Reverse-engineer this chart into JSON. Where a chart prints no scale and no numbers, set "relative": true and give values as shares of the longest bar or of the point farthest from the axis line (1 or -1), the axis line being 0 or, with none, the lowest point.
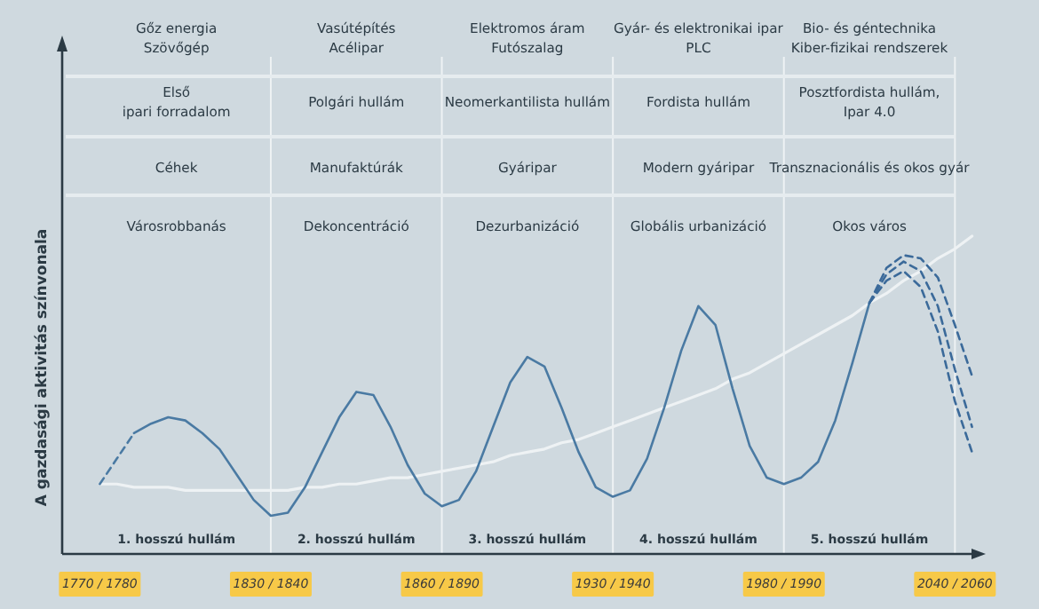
{
  "chart_data": {
    "type": "line",
    "relative": true,
    "ylabel": "A gazdasági aktivitás színvonala",
    "categories": [
      "1770 / 1780",
      null,
      null,
      null,
      null,
      null,
      null,
      null,
      null,
      null,
      "1830 / 1840",
      null,
      null,
      null,
      null,
      null,
      null,
      null,
      null,
      null,
      "1860 / 1890",
      null,
      null,
      null,
      null,
      null,
      null,
      null,
      null,
      null,
      "1930 / 1940",
      null,
      null,
      null,
      null,
      null,
      null,
      null,
      null,
      null,
      "1980 / 1990",
      null,
      null,
      null,
      null,
      null,
      null,
      null,
      null,
      null,
      "2040 / 2060",
      null
    ],
    "grid": "x",
    "marker": "none",
    "series": [
      {
        "color": "#eef2f4",
        "values": [
          0.22,
          0.22,
          0.21,
          0.21,
          0.21,
          0.2,
          0.2,
          0.2,
          0.2,
          0.2,
          0.2,
          0.2,
          0.21,
          0.21,
          0.22,
          0.22,
          0.23,
          0.24,
          0.24,
          0.25,
          0.26,
          0.27,
          0.28,
          0.29,
          0.31,
          0.32,
          0.33,
          0.35,
          0.36,
          0.38,
          0.4,
          0.42,
          0.44,
          0.46,
          0.48,
          0.5,
          0.52,
          0.55,
          0.57,
          0.6,
          0.63,
          0.66,
          0.69,
          0.72,
          0.75,
          0.79,
          0.82,
          0.86,
          0.89,
          0.93,
          0.96,
          1
        ]
      },
      {
        "color": "#4a7aa3",
        "line_style": "dashed",
        "values": [
          0.22,
          0.3,
          0.38,
          null,
          null,
          null,
          null,
          null,
          null,
          null,
          null,
          null,
          null,
          null,
          null,
          null,
          null,
          null,
          null,
          null,
          null,
          null,
          null,
          null,
          null,
          null,
          null,
          null,
          null,
          null,
          null,
          null,
          null,
          null,
          null,
          null,
          null,
          null,
          null,
          null,
          null,
          null,
          null,
          null,
          null,
          null,
          null,
          null,
          null,
          null,
          null,
          null
        ]
      },
      {
        "color": "#4a7aa3",
        "line_style": "solid",
        "values": [
          null,
          null,
          0.38,
          0.41,
          0.43,
          0.42,
          0.38,
          0.33,
          0.25,
          0.17,
          0.12,
          0.13,
          0.21,
          0.32,
          0.43,
          0.51,
          0.5,
          0.4,
          0.28,
          0.19,
          0.15,
          0.17,
          0.26,
          0.4,
          0.54,
          0.62,
          0.59,
          0.46,
          0.32,
          0.21,
          0.18,
          0.2,
          0.3,
          0.46,
          0.64,
          0.78,
          0.72,
          0.52,
          0.34,
          0.24,
          0.22,
          0.24,
          0.29,
          0.42,
          0.6,
          0.79,
          null,
          null,
          null,
          null,
          null,
          null
        ]
      },
      {
        "color": "#3b6a9a",
        "line_style": "dashed",
        "values": [
          null,
          null,
          null,
          null,
          null,
          null,
          null,
          null,
          null,
          null,
          null,
          null,
          null,
          null,
          null,
          null,
          null,
          null,
          null,
          null,
          null,
          null,
          null,
          null,
          null,
          null,
          null,
          null,
          null,
          null,
          null,
          null,
          null,
          null,
          null,
          null,
          null,
          null,
          null,
          null,
          null,
          null,
          null,
          null,
          null,
          0.79,
          0.9,
          0.94,
          0.93,
          0.87,
          0.72,
          0.56
        ]
      },
      {
        "color": "#3b6a9a",
        "line_style": "dashed",
        "values": [
          null,
          null,
          null,
          null,
          null,
          null,
          null,
          null,
          null,
          null,
          null,
          null,
          null,
          null,
          null,
          null,
          null,
          null,
          null,
          null,
          null,
          null,
          null,
          null,
          null,
          null,
          null,
          null,
          null,
          null,
          null,
          null,
          null,
          null,
          null,
          null,
          null,
          null,
          null,
          null,
          null,
          null,
          null,
          null,
          null,
          0.79,
          0.88,
          0.92,
          0.89,
          0.78,
          0.58,
          0.4
        ]
      },
      {
        "color": "#3b6a9a",
        "line_style": "dashed",
        "values": [
          null,
          null,
          null,
          null,
          null,
          null,
          null,
          null,
          null,
          null,
          null,
          null,
          null,
          null,
          null,
          null,
          null,
          null,
          null,
          null,
          null,
          null,
          null,
          null,
          null,
          null,
          null,
          null,
          null,
          null,
          null,
          null,
          null,
          null,
          null,
          null,
          null,
          null,
          null,
          null,
          null,
          null,
          null,
          null,
          null,
          0.79,
          0.86,
          0.89,
          0.84,
          0.7,
          0.48,
          0.32
        ]
      }
    ],
    "annotations": [
      "Gőz energia\nSzövőgép",
      "Vasútépítés\nAcélipar",
      "Elektromos áram\nFutószalag",
      "Gyár- és elektronikai ipar\nPLC",
      "Bio- és géntechnika\nKiber-fizikai rendszerek",
      "Első\nipari forradalom",
      "Polgári hullám",
      "Neomerkantilista hullám",
      "Fordista hullám",
      "Posztfordista hullám,\nIpar 4.0",
      "Céhek",
      "Manufaktúrák",
      "Gyáripar",
      "Modern gyáripar",
      "Transznacionális és okos gyár",
      "Városrobbanás",
      "Dekoncentráció",
      "Dezurbanizáció",
      "Globális urbanizáció",
      "Okos város",
      "1. hosszú hullám",
      "2. hosszú hullám",
      "3. hosszú hullám",
      "4. hosszú hullám",
      "5. hosszú hullám"
    ]
  }
}
